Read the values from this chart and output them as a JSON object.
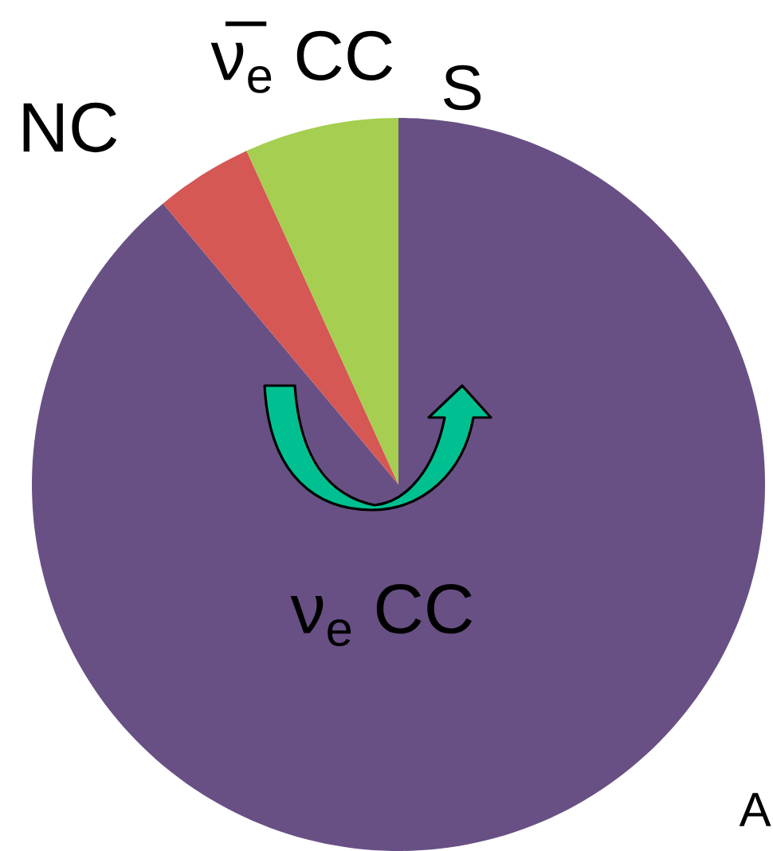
{
  "chart_data": {
    "type": "pie",
    "categories": [
      "ν$_{e}$ CC",
      "NC",
      "ν̅$_{e}$ CC"
    ],
    "values": [
      88.9,
      4.3,
      6.8
    ],
    "colors": [
      "#685085",
      "#d55855",
      "#a6ce50"
    ],
    "annotations": [
      "S",
      "A"
    ]
  }
}
